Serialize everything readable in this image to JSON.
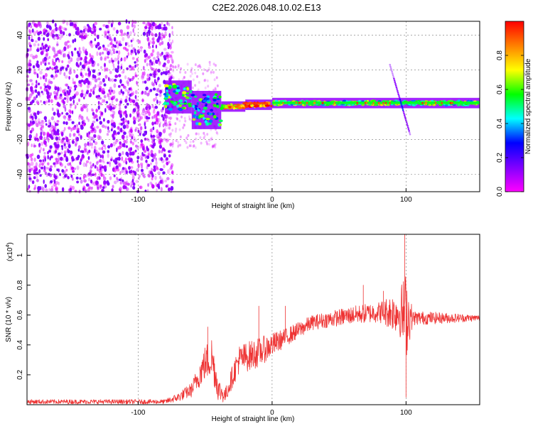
{
  "title": "C2E2.2026.048.10.02.E13",
  "chart_data": [
    {
      "type": "heatmap",
      "name": "spectrogram",
      "xlabel": "Height of straight line (km)",
      "ylabel": "Frequency (Hz)",
      "xlim": [
        -183,
        155
      ],
      "ylim": [
        -50,
        48
      ],
      "xticks": [
        -100,
        0,
        100
      ],
      "yticks": [
        -40,
        -20,
        0,
        20,
        40
      ],
      "colorbar": {
        "label": "Normalized spectral amplitude",
        "range": [
          0,
          1
        ],
        "ticks": [
          "0.0",
          "0.2",
          "0.4",
          "0.6",
          "0.8"
        ],
        "colormap": [
          "#ff00ff",
          "#8000ff",
          "#0000ff",
          "#00ffff",
          "#00ff00",
          "#ffff00",
          "#ff8000",
          "#ff0000"
        ]
      },
      "features": {
        "noise_region_x": [
          -183,
          -80
        ],
        "carrier_segments": [
          {
            "x": [
              -80,
              -60
            ],
            "y": [
              -3,
              12
            ],
            "level": 0.5
          },
          {
            "x": [
              -60,
              -38
            ],
            "y": [
              -12,
              6
            ],
            "level": 0.45
          },
          {
            "x": [
              -38,
              -20
            ],
            "y": [
              -2,
              0
            ],
            "level": 0.75
          },
          {
            "x": [
              -20,
              0
            ],
            "y": [
              -1,
              1
            ],
            "level": 0.9
          },
          {
            "x": [
              0,
              155
            ],
            "y": [
              0,
              2
            ],
            "level": 0.55
          }
        ],
        "sweep_line": {
          "x": [
            88,
            103
          ],
          "y": [
            23,
            -17
          ]
        }
      }
    },
    {
      "type": "line",
      "name": "snr",
      "xlabel": "Height of straight line (km)",
      "ylabel": "SNR (10 * v/v)",
      "multiplier": "(x10",
      "multiplier_exp": "4",
      "color": "#ee3333",
      "xlim": [
        -183,
        155
      ],
      "ylim": [
        0,
        1.14
      ],
      "xticks": [
        -100,
        0,
        100
      ],
      "yticks": [
        0.2,
        0.4,
        0.6,
        0.8,
        1.0
      ],
      "ytick_labels": [
        "0.2",
        "0.4",
        "0.6",
        "0.8",
        "1"
      ],
      "trend": [
        {
          "x": -183,
          "y": 0.02,
          "noise": 0.015
        },
        {
          "x": -80,
          "y": 0.02,
          "noise": 0.015
        },
        {
          "x": -70,
          "y": 0.05,
          "noise": 0.03
        },
        {
          "x": -60,
          "y": 0.1,
          "noise": 0.05
        },
        {
          "x": -50,
          "y": 0.28,
          "noise": 0.12
        },
        {
          "x": -45,
          "y": 0.32,
          "noise": 0.15
        },
        {
          "x": -40,
          "y": 0.1,
          "noise": 0.08
        },
        {
          "x": -35,
          "y": 0.06,
          "noise": 0.05
        },
        {
          "x": -25,
          "y": 0.3,
          "noise": 0.1
        },
        {
          "x": -10,
          "y": 0.35,
          "noise": 0.1
        },
        {
          "x": 0,
          "y": 0.4,
          "noise": 0.08
        },
        {
          "x": 10,
          "y": 0.45,
          "noise": 0.06
        },
        {
          "x": 30,
          "y": 0.55,
          "noise": 0.05
        },
        {
          "x": 60,
          "y": 0.6,
          "noise": 0.06
        },
        {
          "x": 80,
          "y": 0.62,
          "noise": 0.07
        },
        {
          "x": 95,
          "y": 0.62,
          "noise": 0.15
        },
        {
          "x": 100,
          "y": 0.6,
          "noise": 0.3
        },
        {
          "x": 105,
          "y": 0.58,
          "noise": 0.05
        },
        {
          "x": 155,
          "y": 0.58,
          "noise": 0.02
        }
      ],
      "spikes": [
        {
          "x": -48,
          "y": 0.52
        },
        {
          "x": -10,
          "y": 0.66
        },
        {
          "x": 10,
          "y": 0.66
        },
        {
          "x": 68,
          "y": 0.8
        },
        {
          "x": 83,
          "y": 0.76
        },
        {
          "x": 99,
          "y": 1.14
        },
        {
          "x": 100,
          "y": 0.05
        }
      ]
    }
  ]
}
